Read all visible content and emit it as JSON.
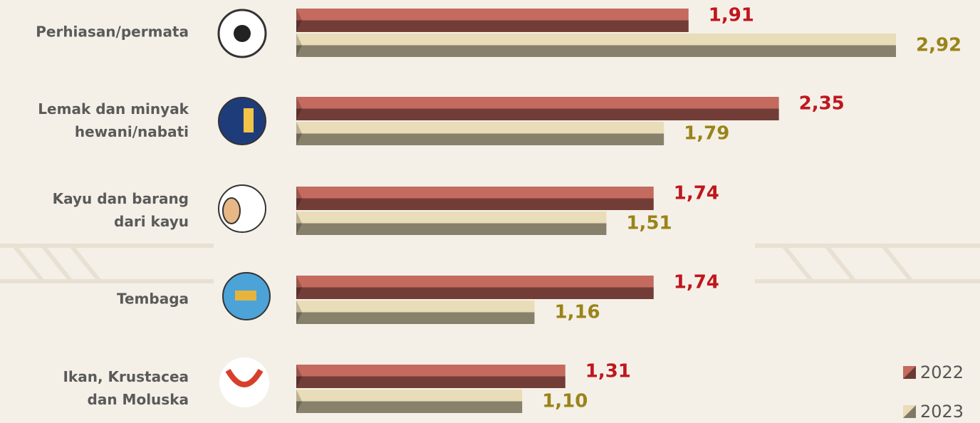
{
  "chart_data": {
    "type": "bar",
    "orientation": "horizontal",
    "categories": [
      "Perhiasan/permata",
      "Lemak dan minyak\nhewani/nabati",
      "Kayu dan barang\ndari kayu",
      "Tembaga",
      "Ikan, Krustacea\ndan Moluska"
    ],
    "series": [
      {
        "name": "2022",
        "color": "#c46a5f",
        "label_color": "#c0161e",
        "values": [
          1.91,
          2.35,
          1.74,
          1.74,
          1.31
        ],
        "value_labels": [
          "1,91",
          "2,35",
          "1,74",
          "1,74",
          "1,31"
        ]
      },
      {
        "name": "2023",
        "color": "#e9dcb8",
        "label_color": "#9a8419",
        "values": [
          2.92,
          1.79,
          1.51,
          1.16,
          1.1
        ],
        "value_labels": [
          "2,92",
          "1,79",
          "1,51",
          "1,16",
          "1,10"
        ]
      }
    ],
    "legend": "bottom-right"
  }
}
